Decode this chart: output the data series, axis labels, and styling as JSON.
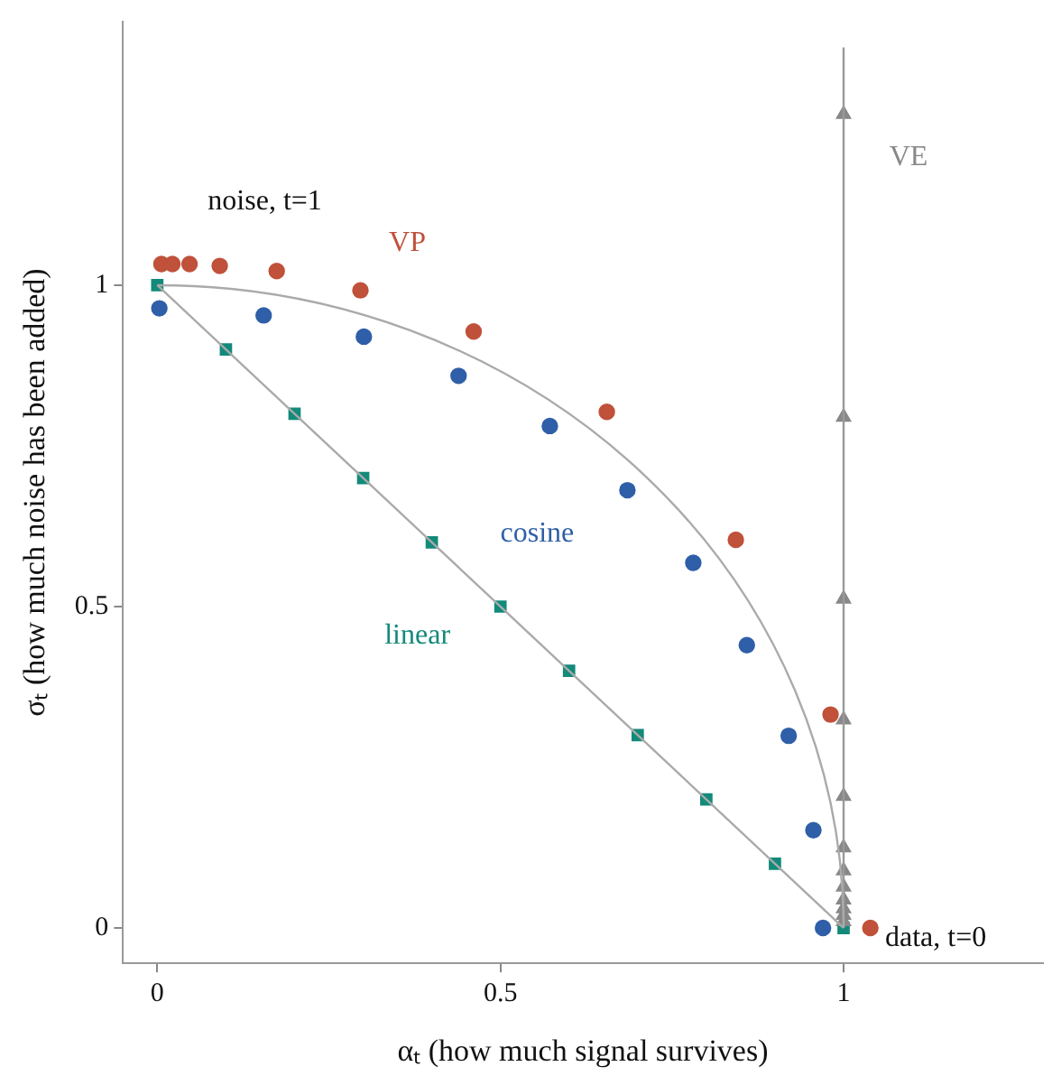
{
  "chart_data": {
    "type": "scatter",
    "xlabel": "αₜ (how much signal survives)",
    "ylabel": "σₜ (how much noise has been added)",
    "xlim": [
      -0.05,
      1.29
    ],
    "ylim": [
      -0.055,
      1.41
    ],
    "xticks": [
      0,
      0.5,
      1
    ],
    "yticks": [
      0,
      0.5,
      1
    ],
    "grid": false,
    "legend": false,
    "annotations": [
      {
        "text": "noise, t=1",
        "x": 0,
        "y": 1
      },
      {
        "text": "data, t=0",
        "x": 1,
        "y": 0
      }
    ],
    "series": [
      {
        "type": "line",
        "color": "#aaaaaa",
        "marker": "none",
        "x": [
          0,
          1
        ],
        "values": [
          1,
          0
        ]
      },
      {
        "type": "line",
        "color": "#999999",
        "marker": "none",
        "x": [
          1,
          1
        ],
        "values": [
          0,
          1.37
        ]
      },
      {
        "name": "VE",
        "type": "scatter",
        "color": "#888888",
        "marker": "triangle",
        "x": [
          1,
          1,
          1,
          1,
          1,
          1,
          1,
          1,
          1,
          1,
          1,
          1
        ],
        "values": [
          1.266,
          0.795,
          0.512,
          0.324,
          0.205,
          0.125,
          0.089,
          0.064,
          0.044,
          0.03,
          0.02,
          0.01
        ]
      },
      {
        "name": "VP",
        "type": "scatter",
        "color": "#c0513a",
        "marker": "circle",
        "x": [
          0.006,
          0.022,
          0.047,
          0.091,
          0.174,
          0.296,
          0.461,
          0.655,
          0.843,
          0.981,
          1.039
        ],
        "values": [
          1.033,
          1.033,
          1.033,
          1.03,
          1.022,
          0.992,
          0.928,
          0.803,
          0.604,
          0.332,
          0
        ]
      },
      {
        "name": "cosine",
        "type": "scatter",
        "color": "#2f5fa8",
        "marker": "circle",
        "x": [
          0.003,
          0.155,
          0.301,
          0.439,
          0.572,
          0.685,
          0.781,
          0.859,
          0.92,
          0.956,
          0.97
        ],
        "values": [
          0.964,
          0.953,
          0.92,
          0.859,
          0.781,
          0.681,
          0.568,
          0.44,
          0.299,
          0.152,
          0
        ]
      },
      {
        "name": "linear",
        "type": "scatter",
        "color": "#138a7a",
        "marker": "square",
        "x": [
          0,
          0.1,
          0.2,
          0.3,
          0.4,
          0.5,
          0.6,
          0.7,
          0.8,
          0.9,
          1
        ],
        "values": [
          1,
          0.9,
          0.8,
          0.7,
          0.6,
          0.5,
          0.4,
          0.3,
          0.2,
          0.1,
          0
        ]
      }
    ]
  }
}
